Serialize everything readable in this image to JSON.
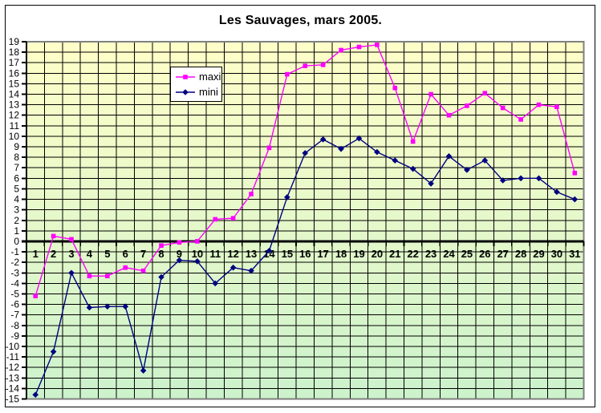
{
  "title": "Les Sauvages, mars 2005.",
  "legend": {
    "items": [
      {
        "label": "maxi",
        "color": "#FF00FF",
        "marker": "square"
      },
      {
        "label": "mini",
        "color": "#000080",
        "marker": "diamond"
      }
    ]
  },
  "chart_data": {
    "type": "line",
    "title": "Les Sauvages, mars 2005.",
    "categories": [
      1,
      2,
      3,
      4,
      5,
      6,
      7,
      8,
      9,
      10,
      11,
      12,
      13,
      14,
      15,
      16,
      17,
      18,
      19,
      20,
      21,
      22,
      23,
      24,
      25,
      26,
      27,
      28,
      29,
      30,
      31
    ],
    "series": [
      {
        "name": "maxi",
        "color": "#FF00FF",
        "marker": "square",
        "values": [
          -5.2,
          0.5,
          0.2,
          -3.3,
          -3.3,
          -2.5,
          -2.8,
          -0.4,
          -0.1,
          0.0,
          2.1,
          2.2,
          4.5,
          8.9,
          15.9,
          16.7,
          16.8,
          18.2,
          18.5,
          18.7,
          14.6,
          9.5,
          14.0,
          12.0,
          12.9,
          14.1,
          12.7,
          11.6,
          13.0,
          12.8,
          6.5
        ]
      },
      {
        "name": "mini",
        "color": "#000080",
        "marker": "diamond",
        "values": [
          -14.6,
          -10.5,
          -3.0,
          -6.3,
          -6.2,
          -6.2,
          -12.3,
          -3.4,
          -1.8,
          -1.9,
          -4.0,
          -2.5,
          -2.8,
          -0.9,
          4.2,
          8.4,
          9.7,
          8.8,
          9.8,
          8.5,
          7.7,
          6.9,
          5.5,
          8.1,
          6.8,
          7.7,
          5.8,
          6.0,
          6.0,
          4.7,
          4.0
        ]
      }
    ],
    "xlabel": "",
    "ylabel": "",
    "ylim": [
      -15,
      19
    ],
    "y_tick_step": 1,
    "y_ticks": [
      19,
      18,
      17,
      16,
      15,
      14,
      13,
      12,
      11,
      10,
      9,
      8,
      7,
      6,
      5,
      4,
      3,
      2,
      1,
      0,
      -1,
      -2,
      -3,
      -4,
      -5,
      -6,
      -7,
      -8,
      -9,
      -10,
      -11,
      -12,
      -13,
      -14,
      -15
    ],
    "grid": true,
    "legend_position": "inside-top-left",
    "plot_bg_gradient_top": "#FFFFC8",
    "plot_bg_gradient_bottom": "#CCF2CC",
    "gridline_color": "#000000",
    "zero_line_color": "#000000",
    "plot_border_color": "#808080",
    "axis_label_color": "#000000"
  }
}
